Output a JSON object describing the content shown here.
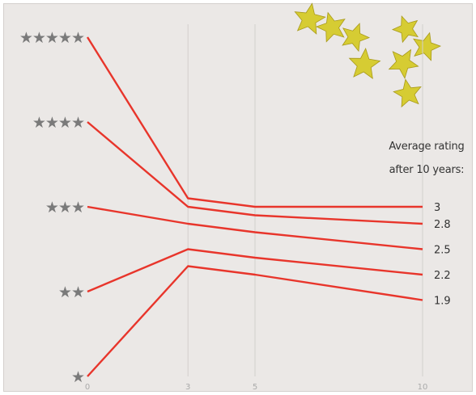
{
  "chart_data": {
    "type": "line",
    "title": "",
    "xlabel": "",
    "ylabel": "",
    "x_ticks": [
      0,
      3,
      5,
      10
    ],
    "xlim": [
      0,
      10
    ],
    "y_ticks": [
      {
        "value": 5,
        "label": "★★★★★"
      },
      {
        "value": 4,
        "label": "★★★★"
      },
      {
        "value": 3,
        "label": "★★★"
      },
      {
        "value": 2,
        "label": "★★"
      },
      {
        "value": 1,
        "label": "★"
      }
    ],
    "ylim": [
      1,
      5
    ],
    "grid": {
      "vertical": true,
      "horizontal": false
    },
    "legend_title": [
      "Average rating",
      "after 10 years:"
    ],
    "series": [
      {
        "x": [
          0,
          3,
          5,
          10
        ],
        "values": [
          5,
          3.1,
          3,
          3
        ],
        "end_label": "3"
      },
      {
        "x": [
          0,
          3,
          5,
          10
        ],
        "values": [
          4,
          3,
          2.9,
          2.8
        ],
        "end_label": "2.8"
      },
      {
        "x": [
          0,
          3,
          5,
          10
        ],
        "values": [
          3,
          2.8,
          2.7,
          2.5
        ],
        "end_label": "2.5"
      },
      {
        "x": [
          0,
          3,
          5,
          10
        ],
        "values": [
          2,
          2.5,
          2.4,
          2.2
        ],
        "end_label": "2.2"
      },
      {
        "x": [
          0,
          3,
          5,
          10
        ],
        "values": [
          1,
          2.3,
          2.2,
          1.9
        ],
        "end_label": "1.9"
      }
    ],
    "colors": {
      "line": "#e8352b",
      "grid": "#d2cfcc",
      "star": "#7a7a7a",
      "label": "#333333",
      "tick": "#aaaaaa",
      "decor_star": "#d6cc33"
    }
  }
}
